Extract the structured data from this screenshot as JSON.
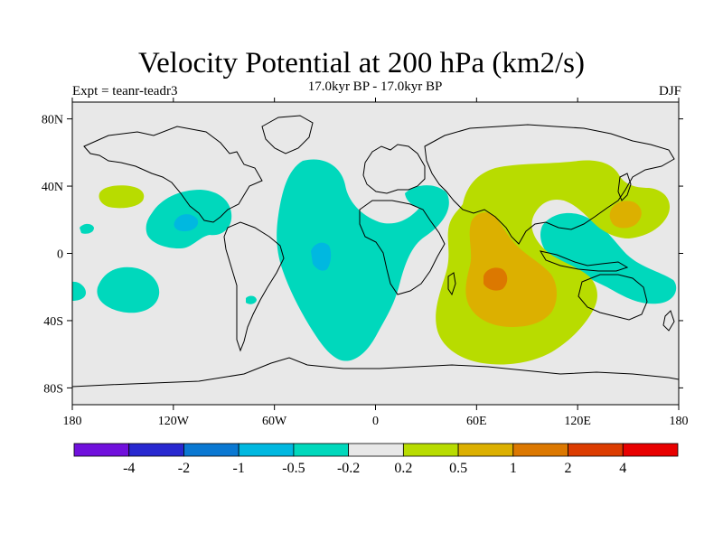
{
  "title": "Velocity Potential at 200 hPa (km2/s)",
  "subtitle": "17.0kyr BP - 17.0kyr BP",
  "expt_label": "Expt = teanr-teadr3",
  "season": "DJF",
  "chart_data": {
    "type": "filled-contour-map",
    "projection": "cylindrical-equidistant",
    "x_ticks": [
      "180",
      "120W",
      "60W",
      "0",
      "60E",
      "120E",
      "180"
    ],
    "y_ticks": [
      "80N",
      "40N",
      "0",
      "40S",
      "80S"
    ],
    "colorbar": {
      "levels": [
        "-4",
        "-2",
        "-1",
        "-0.5",
        "-0.2",
        "0.2",
        "0.5",
        "1",
        "2",
        "4"
      ],
      "colors": [
        "#7010dc",
        "#2828d0",
        "#0a78d2",
        "#00b8e0",
        "#00d8bc",
        "#e8e8e8",
        "#b8dc00",
        "#dcb000",
        "#dc7800",
        "#dc3c00",
        "#e80000"
      ]
    },
    "colors": {
      "background": "#e8e8e8",
      "negative_weak": "#00d8bc",
      "negative_moderate": "#00b8e0",
      "positive_weak": "#b8dc00",
      "positive_moderate": "#dcb000",
      "positive_strong": "#dc7800"
    }
  }
}
